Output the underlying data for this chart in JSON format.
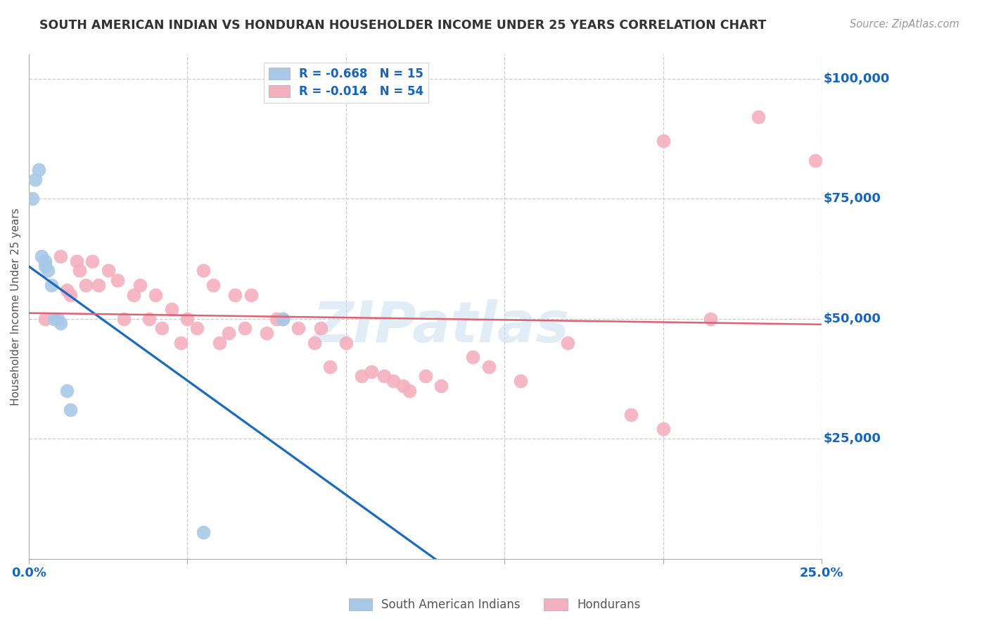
{
  "title": "SOUTH AMERICAN INDIAN VS HONDURAN HOUSEHOLDER INCOME UNDER 25 YEARS CORRELATION CHART",
  "source": "Source: ZipAtlas.com",
  "ylabel": "Householder Income Under 25 years",
  "y_labels": [
    "$100,000",
    "$75,000",
    "$50,000",
    "$25,000"
  ],
  "y_values": [
    100000,
    75000,
    50000,
    25000
  ],
  "xlim": [
    0,
    0.25
  ],
  "ylim": [
    0,
    105000
  ],
  "legend_top_labels": [
    "R = -0.668   N = 15",
    "R = -0.014   N = 54"
  ],
  "legend_bottom": [
    "South American Indians",
    "Hondurans"
  ],
  "blue_color": "#a8c8e8",
  "pink_color": "#f4b0be",
  "blue_line_color": "#1a6bbf",
  "pink_line_color": "#e06070",
  "background_color": "#ffffff",
  "grid_color": "#cccccc",
  "watermark": "ZIPatlas",
  "blue_x": [
    0.001,
    0.002,
    0.003,
    0.004,
    0.005,
    0.005,
    0.006,
    0.007,
    0.008,
    0.009,
    0.01,
    0.012,
    0.013,
    0.055,
    0.08
  ],
  "blue_y": [
    75000,
    79000,
    81000,
    63000,
    62000,
    61000,
    60000,
    57000,
    50000,
    50000,
    49000,
    35000,
    31000,
    5500,
    50000
  ],
  "pink_x": [
    0.005,
    0.01,
    0.012,
    0.013,
    0.015,
    0.016,
    0.018,
    0.02,
    0.022,
    0.025,
    0.028,
    0.03,
    0.033,
    0.035,
    0.038,
    0.04,
    0.042,
    0.045,
    0.048,
    0.05,
    0.053,
    0.055,
    0.058,
    0.06,
    0.063,
    0.065,
    0.068,
    0.07,
    0.075,
    0.078,
    0.08,
    0.085,
    0.09,
    0.092,
    0.095,
    0.1,
    0.105,
    0.108,
    0.112,
    0.115,
    0.118,
    0.12,
    0.125,
    0.13,
    0.14,
    0.145,
    0.155,
    0.17,
    0.19,
    0.2,
    0.215,
    0.248,
    0.23,
    0.2
  ],
  "pink_y": [
    50000,
    63000,
    56000,
    55000,
    62000,
    60000,
    57000,
    62000,
    57000,
    60000,
    58000,
    50000,
    55000,
    57000,
    50000,
    55000,
    48000,
    52000,
    45000,
    50000,
    48000,
    60000,
    57000,
    45000,
    47000,
    55000,
    48000,
    55000,
    47000,
    50000,
    50000,
    48000,
    45000,
    48000,
    40000,
    45000,
    38000,
    39000,
    38000,
    37000,
    36000,
    35000,
    38000,
    36000,
    42000,
    40000,
    37000,
    45000,
    30000,
    27000,
    50000,
    83000,
    92000,
    87000
  ]
}
